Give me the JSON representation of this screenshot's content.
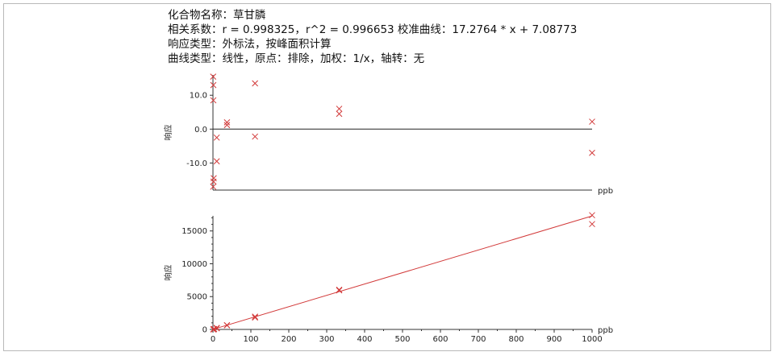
{
  "header": {
    "line1": "化合物名称：草甘膦",
    "line2": "相关系数：r = 0.998325，r^2 = 0.996653 校准曲线：17.2764 * x + 7.08773",
    "line3": "响应类型：外标法，按峰面积计算",
    "line4": "曲线类型：线性，原点：排除，加权：1/x，轴转：无"
  },
  "chart_data": [
    {
      "type": "scatter",
      "ylabel": "响应",
      "xlabel": "ppb",
      "xlim": [
        0,
        1000
      ],
      "ylim": [
        -18,
        16
      ],
      "y_ticks": [
        10.0,
        0.0,
        -10.0
      ],
      "y_tick_labels": [
        "10.0",
        "0.0",
        "-10.0"
      ],
      "zero_line": true,
      "marker_color": "#d23a3a",
      "points": [
        {
          "x": 0.5,
          "y": 15.5
        },
        {
          "x": 1,
          "y": 13.0
        },
        {
          "x": 1,
          "y": 8.5
        },
        {
          "x": 2,
          "y": -14.5
        },
        {
          "x": 1.5,
          "y": -15.5
        },
        {
          "x": 0.5,
          "y": -17.0
        },
        {
          "x": 10,
          "y": -2.5
        },
        {
          "x": 10,
          "y": -9.5
        },
        {
          "x": 37,
          "y": 2.0
        },
        {
          "x": 37,
          "y": 1.2
        },
        {
          "x": 111,
          "y": 13.5
        },
        {
          "x": 111,
          "y": -2.2
        },
        {
          "x": 333,
          "y": 6.0
        },
        {
          "x": 333,
          "y": 4.5
        },
        {
          "x": 1000,
          "y": 2.2
        },
        {
          "x": 1000,
          "y": -7.0
        }
      ]
    },
    {
      "type": "scatter",
      "ylabel": "响应",
      "xlabel": "ppb",
      "xlim": [
        0,
        1000
      ],
      "ylim": [
        0,
        17300
      ],
      "y_ticks": [
        0,
        5000,
        10000,
        15000
      ],
      "y_tick_labels": [
        "0",
        "5000",
        "10000",
        "15000"
      ],
      "x_ticks": [
        0,
        100,
        200,
        300,
        400,
        500,
        600,
        700,
        800,
        900,
        1000
      ],
      "x_tick_labels": [
        "0",
        "100",
        "200",
        "300",
        "400",
        "500",
        "600",
        "700",
        "800",
        "900",
        "1000"
      ],
      "fit_line": {
        "slope": 17.2764,
        "intercept": 7.08773
      },
      "marker_color": "#d23a3a",
      "line_color": "#d23a3a",
      "points": [
        {
          "x": 1,
          "y": 20
        },
        {
          "x": 1,
          "y": 5
        },
        {
          "x": 3,
          "y": 60
        },
        {
          "x": 3,
          "y": 40
        },
        {
          "x": 10,
          "y": 170
        },
        {
          "x": 10,
          "y": 230
        },
        {
          "x": 37,
          "y": 650
        },
        {
          "x": 37,
          "y": 620
        },
        {
          "x": 111,
          "y": 1950
        },
        {
          "x": 111,
          "y": 1800
        },
        {
          "x": 333,
          "y": 6050
        },
        {
          "x": 333,
          "y": 5950
        },
        {
          "x": 1000,
          "y": 17400
        },
        {
          "x": 1000,
          "y": 16050
        }
      ]
    }
  ]
}
